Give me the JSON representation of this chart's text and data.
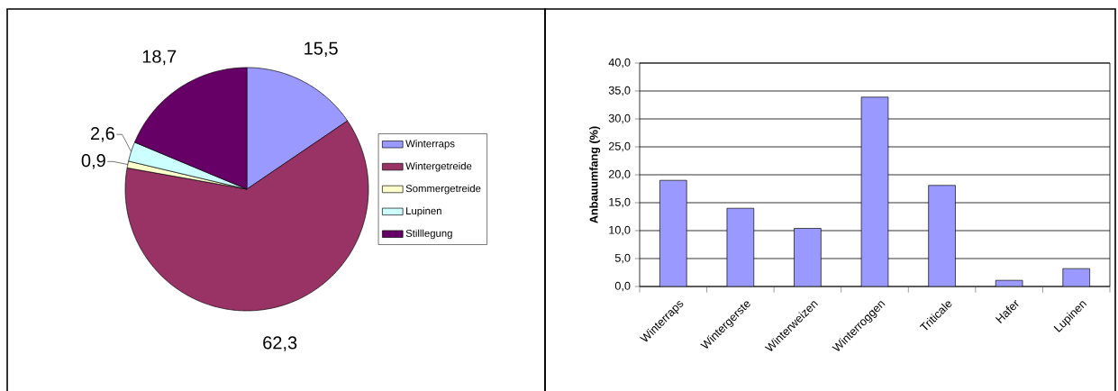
{
  "chart_data": [
    {
      "type": "pie",
      "categories": [
        "Winterraps",
        "Wintergetreide",
        "Sommergetreide",
        "Lupinen",
        "Stilllegung"
      ],
      "values": [
        15.5,
        62.3,
        0.9,
        2.6,
        18.7
      ],
      "colors": [
        "#9999ff",
        "#993366",
        "#ffffcc",
        "#ccffff",
        "#660066"
      ],
      "value_labels": [
        "15,5",
        "62,3",
        "0,9",
        "2,6",
        "18,7"
      ],
      "legend": "right"
    },
    {
      "type": "bar",
      "categories": [
        "Winterraps",
        "Wintergerste",
        "Winterweizen",
        "Winterroggen",
        "Triticale",
        "Hafer",
        "Lupinen"
      ],
      "values": [
        19.0,
        14.0,
        10.4,
        33.9,
        18.1,
        1.1,
        3.2
      ],
      "color": "#9999ff",
      "ylabel": "Anbauumfang (%)",
      "ylim": [
        0,
        40
      ],
      "yticks": [
        {
          "value": 0,
          "label": "0,0"
        },
        {
          "value": 5,
          "label": "5,0"
        },
        {
          "value": 10,
          "label": "10,0"
        },
        {
          "value": 15,
          "label": "15,0"
        },
        {
          "value": 20,
          "label": "20,0"
        },
        {
          "value": 25,
          "label": "25,0"
        },
        {
          "value": 30,
          "label": "30,0"
        },
        {
          "value": 35,
          "label": "35,0"
        },
        {
          "value": 40,
          "label": "40,0"
        }
      ],
      "grid": "y"
    }
  ]
}
